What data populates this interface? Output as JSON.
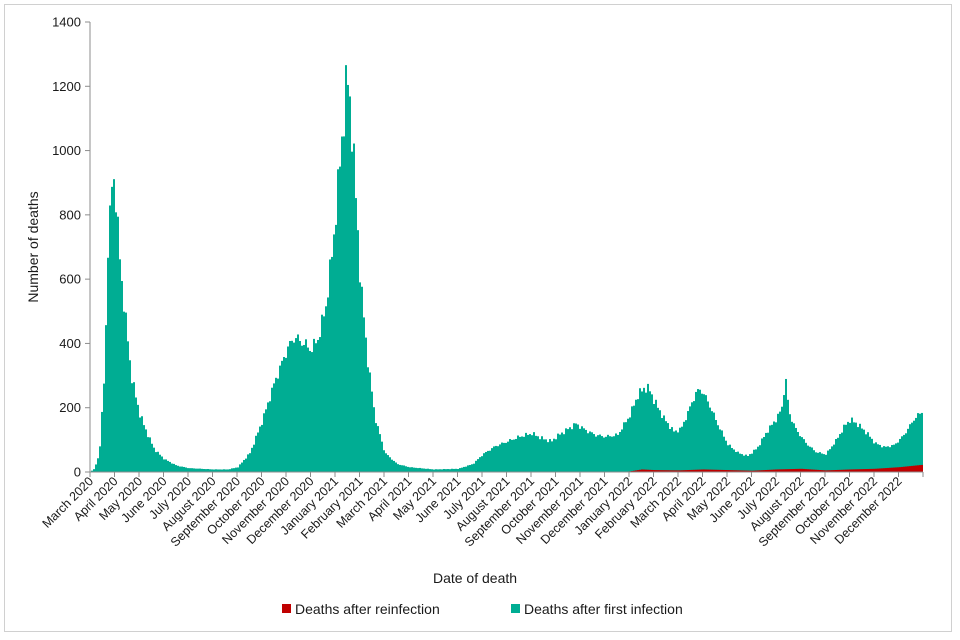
{
  "chart_data": {
    "type": "bar",
    "stacked": true,
    "xlabel": "Date of death",
    "ylabel": "Number of deaths",
    "ylim": [
      0,
      1400
    ],
    "yticks": [
      0,
      200,
      400,
      600,
      800,
      1000,
      1200,
      1400
    ],
    "grid": false,
    "legend_position": "bottom",
    "categories": [
      "March 2020",
      "April 2020",
      "May 2020",
      "June 2020",
      "July 2020",
      "August 2020",
      "September 2020",
      "October 2020",
      "November 2020",
      "December 2020",
      "January 2021",
      "February 2021",
      "March 2021",
      "April 2021",
      "May 2021",
      "June 2021",
      "July 2021",
      "August 2021",
      "September 2021",
      "October 2021",
      "November 2021",
      "December 2021",
      "January 2022",
      "February 2022",
      "March 2022",
      "April 2022",
      "May 2022",
      "June 2022",
      "July 2022",
      "August 2022",
      "September 2022",
      "October 2022",
      "November 2022",
      "December 2022"
    ],
    "series": [
      {
        "name": "Deaths after reinfection",
        "color": "#c00000",
        "keypoints": [
          [
            0,
            0
          ],
          [
            21.5,
            0
          ],
          [
            22,
            2
          ],
          [
            22.5,
            8
          ],
          [
            23,
            6
          ],
          [
            24,
            5
          ],
          [
            25,
            8
          ],
          [
            26,
            6
          ],
          [
            27,
            4
          ],
          [
            28,
            8
          ],
          [
            29,
            10
          ],
          [
            30,
            5
          ],
          [
            31,
            8
          ],
          [
            32,
            10
          ],
          [
            33,
            15
          ],
          [
            33.9,
            22
          ]
        ]
      },
      {
        "name": "Deaths after first infection",
        "color": "#00ad93",
        "keypoints": [
          [
            0,
            2
          ],
          [
            0.15,
            10
          ],
          [
            0.35,
            60
          ],
          [
            0.55,
            300
          ],
          [
            0.7,
            700
          ],
          [
            0.82,
            840
          ],
          [
            0.9,
            960
          ],
          [
            1.0,
            860
          ],
          [
            1.15,
            700
          ],
          [
            1.35,
            520
          ],
          [
            1.5,
            420
          ],
          [
            1.65,
            300
          ],
          [
            1.85,
            230
          ],
          [
            2.0,
            180
          ],
          [
            2.3,
            120
          ],
          [
            2.6,
            70
          ],
          [
            3.0,
            40
          ],
          [
            3.5,
            20
          ],
          [
            4.0,
            12
          ],
          [
            5.0,
            8
          ],
          [
            5.6,
            8
          ],
          [
            6.0,
            15
          ],
          [
            6.5,
            60
          ],
          [
            7.0,
            160
          ],
          [
            7.5,
            280
          ],
          [
            8.0,
            380
          ],
          [
            8.3,
            420
          ],
          [
            8.7,
            400
          ],
          [
            9.0,
            380
          ],
          [
            9.3,
            420
          ],
          [
            9.6,
            520
          ],
          [
            9.9,
            720
          ],
          [
            10.15,
            950
          ],
          [
            10.35,
            1130
          ],
          [
            10.45,
            1240
          ],
          [
            10.55,
            1180
          ],
          [
            10.75,
            950
          ],
          [
            11.0,
            600
          ],
          [
            11.3,
            350
          ],
          [
            11.6,
            170
          ],
          [
            12.0,
            60
          ],
          [
            12.5,
            25
          ],
          [
            13.0,
            15
          ],
          [
            14.0,
            8
          ],
          [
            15.0,
            10
          ],
          [
            15.6,
            25
          ],
          [
            16.0,
            55
          ],
          [
            16.5,
            80
          ],
          [
            17.0,
            95
          ],
          [
            17.5,
            110
          ],
          [
            18.0,
            120
          ],
          [
            18.4,
            105
          ],
          [
            18.8,
            95
          ],
          [
            19.0,
            110
          ],
          [
            19.4,
            130
          ],
          [
            19.8,
            150
          ],
          [
            20.2,
            130
          ],
          [
            20.6,
            115
          ],
          [
            21.0,
            110
          ],
          [
            21.5,
            115
          ],
          [
            22.0,
            175
          ],
          [
            22.3,
            230
          ],
          [
            22.6,
            255
          ],
          [
            22.8,
            250
          ],
          [
            23.0,
            215
          ],
          [
            23.4,
            160
          ],
          [
            23.8,
            120
          ],
          [
            24.1,
            130
          ],
          [
            24.4,
            185
          ],
          [
            24.7,
            240
          ],
          [
            24.9,
            250
          ],
          [
            25.2,
            210
          ],
          [
            25.6,
            140
          ],
          [
            26.0,
            80
          ],
          [
            26.4,
            55
          ],
          [
            26.8,
            45
          ],
          [
            27.2,
            70
          ],
          [
            27.6,
            120
          ],
          [
            28.0,
            160
          ],
          [
            28.2,
            190
          ],
          [
            28.35,
            285
          ],
          [
            28.5,
            175
          ],
          [
            28.8,
            120
          ],
          [
            29.2,
            80
          ],
          [
            29.6,
            55
          ],
          [
            30.0,
            50
          ],
          [
            30.4,
            90
          ],
          [
            30.8,
            140
          ],
          [
            31.0,
            155
          ],
          [
            31.3,
            140
          ],
          [
            31.7,
            110
          ],
          [
            32.0,
            80
          ],
          [
            32.4,
            65
          ],
          [
            32.8,
            70
          ],
          [
            33.2,
            100
          ],
          [
            33.6,
            145
          ],
          [
            33.9,
            165
          ]
        ]
      }
    ]
  }
}
